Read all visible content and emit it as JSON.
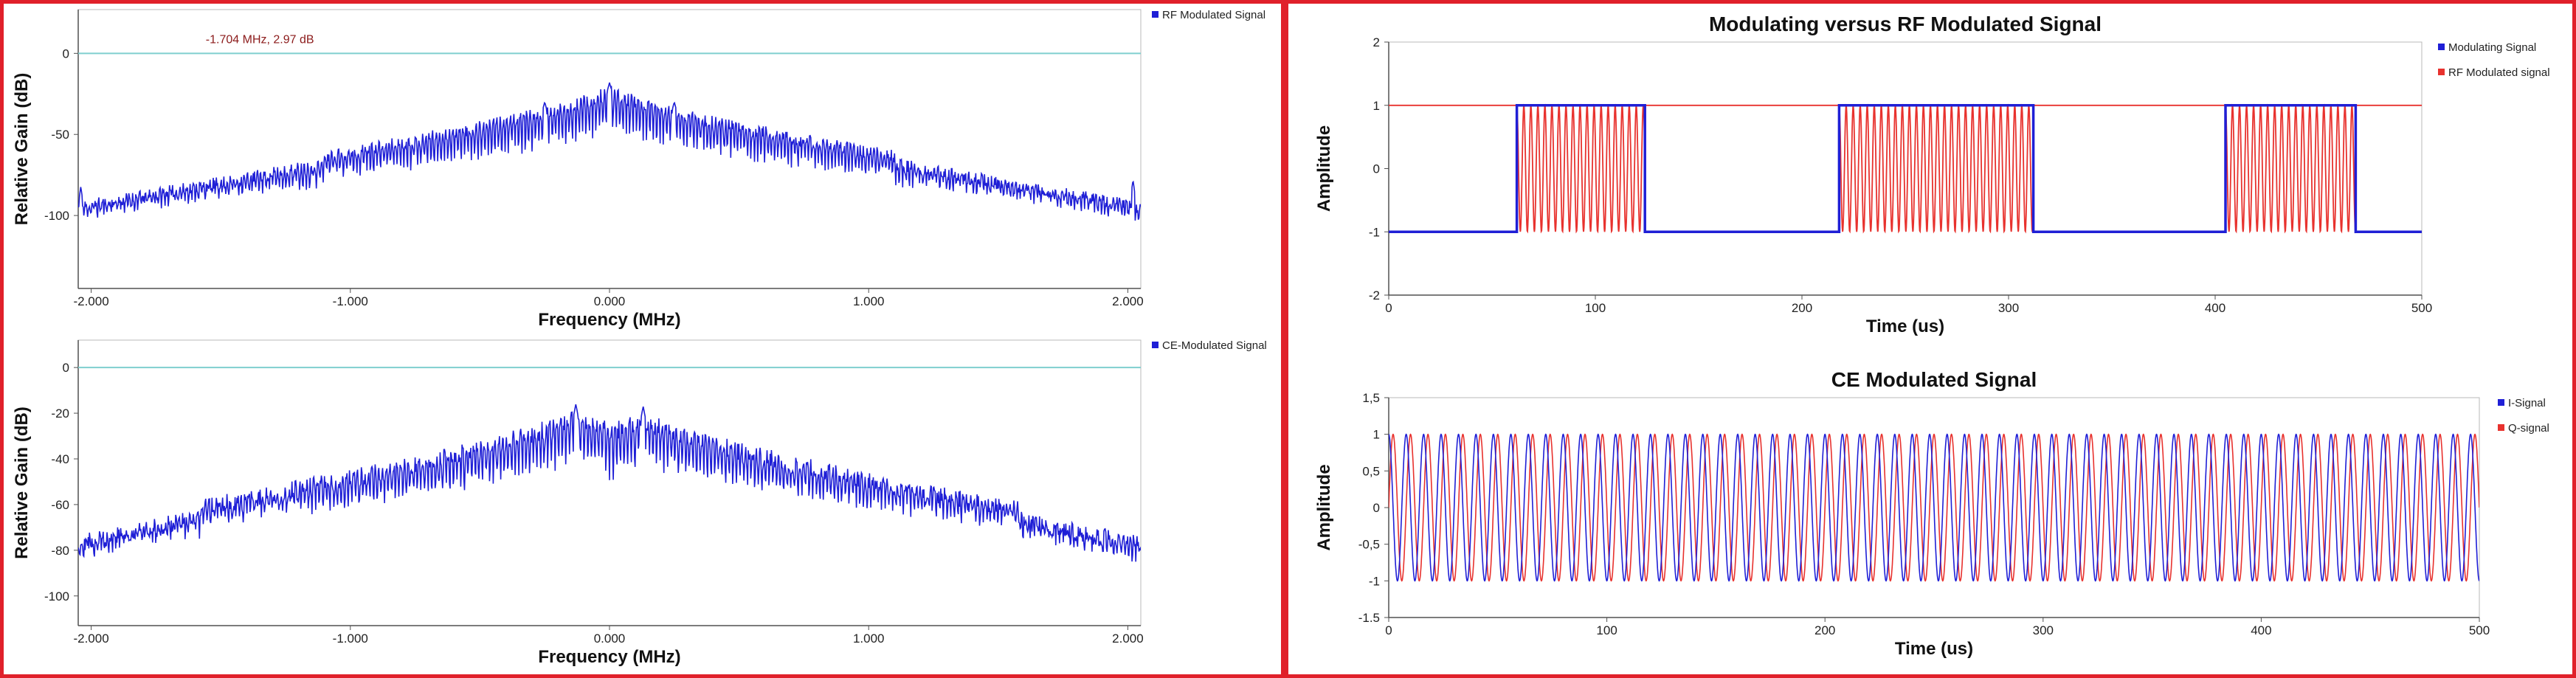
{
  "colors": {
    "frame": "#e0202a",
    "blue": "#1f1fd6",
    "red": "#e8322e",
    "reference_line": "#7fcfcf",
    "cursor_text": "#8b1a1a"
  },
  "chart_data": [
    {
      "type": "line",
      "name": "rf-spectrum",
      "title": "",
      "xlabel": "Frequency (MHz)",
      "ylabel": "Relative Gain (dB)",
      "xlim": [
        -2.05,
        2.05
      ],
      "ylim": [
        -145,
        27
      ],
      "xticks": [
        -2.0,
        -1.0,
        0.0,
        1.0,
        2.0
      ],
      "xtick_labels": [
        "-2.000",
        "-1.000",
        "0.000",
        "1.000",
        "2.000"
      ],
      "yticks": [
        0,
        -50,
        -100
      ],
      "ytick_labels": [
        "0",
        "-50",
        "-100"
      ],
      "reference_line": 0,
      "annotation": "-1.704 MHz, 2.97 dB",
      "legend": "top-right",
      "series": [
        {
          "name": "RF Modulated Signal",
          "color": "blue",
          "noise_floor": -97,
          "peaks": [
            {
              "x": -0.25,
              "y": -30
            },
            {
              "x": 0.0,
              "y": -18
            },
            {
              "x": 0.25,
              "y": -30
            }
          ],
          "spurs": [
            {
              "x": -2.04,
              "y": -82
            },
            {
              "x": -1.76,
              "y": -85
            },
            {
              "x": -1.62,
              "y": -92
            },
            {
              "x": -1.5,
              "y": -80
            },
            {
              "x": -1.42,
              "y": -88
            },
            {
              "x": -1.25,
              "y": -88
            },
            {
              "x": -1.0,
              "y": -90
            },
            {
              "x": 0.9,
              "y": -88
            },
            {
              "x": 1.15,
              "y": -86
            },
            {
              "x": 1.4,
              "y": -82
            },
            {
              "x": 1.62,
              "y": -92
            },
            {
              "x": 2.02,
              "y": -78
            }
          ]
        }
      ]
    },
    {
      "type": "line",
      "name": "ce-spectrum",
      "title": "",
      "xlabel": "Frequency (MHz)",
      "ylabel": "Relative Gain (dB)",
      "xlim": [
        -2.05,
        2.05
      ],
      "ylim": [
        -113,
        12
      ],
      "xticks": [
        -2.0,
        -1.0,
        0.0,
        1.0,
        2.0
      ],
      "xtick_labels": [
        "-2.000",
        "-1.000",
        "0.000",
        "1.000",
        "2.000"
      ],
      "yticks": [
        0,
        -20,
        -40,
        -60,
        -80,
        -100
      ],
      "ytick_labels": [
        "0",
        "-20",
        "-40",
        "-60",
        "-80",
        "-100"
      ],
      "reference_line": 0,
      "legend": "top-right",
      "series": [
        {
          "name": "CE-Modulated Signal",
          "color": "blue",
          "noise_floor": -91,
          "peaks": [
            {
              "x": -0.13,
              "y": -16
            },
            {
              "x": 0.13,
              "y": -17
            }
          ],
          "spurs": [
            {
              "x": -1.65,
              "y": -70
            },
            {
              "x": -1.3,
              "y": -74
            },
            {
              "x": -1.04,
              "y": -76
            },
            {
              "x": 1.02,
              "y": -76
            },
            {
              "x": 1.3,
              "y": -74
            },
            {
              "x": 1.88,
              "y": -74
            },
            {
              "x": 2.02,
              "y": -82
            }
          ]
        }
      ]
    },
    {
      "type": "line",
      "name": "modulating-vs-rf",
      "title": "Modulating versus RF Modulated Signal",
      "xlabel": "Time (us)",
      "ylabel": "Amplitude",
      "xlim": [
        0,
        500
      ],
      "ylim": [
        -2,
        2
      ],
      "xticks": [
        0,
        100,
        200,
        300,
        400,
        500
      ],
      "xtick_labels": [
        "0",
        "100",
        "200",
        "300",
        "400",
        "500"
      ],
      "yticks": [
        2,
        1,
        0,
        -1,
        -2
      ],
      "ytick_labels": [
        "2",
        "1",
        "0",
        "-1",
        "-2"
      ],
      "legend": "top-right",
      "pulses": [
        [
          62,
          124
        ],
        [
          218,
          312
        ],
        [
          405,
          468
        ]
      ],
      "series": [
        {
          "name": "Modulating Signal",
          "color": "blue",
          "high": 1,
          "low": -1
        },
        {
          "name": "RF Modulated signal",
          "color": "red",
          "carrier_period_us": 3.4,
          "idle_level": 1
        }
      ]
    },
    {
      "type": "line",
      "name": "ce-modulated-signal",
      "title": "CE Modulated Signal",
      "xlabel": "Time (us)",
      "ylabel": "Amplitude",
      "xlim": [
        0,
        500
      ],
      "ylim": [
        -1.5,
        1.5
      ],
      "xticks": [
        0,
        100,
        200,
        300,
        400,
        500
      ],
      "xtick_labels": [
        "0",
        "100",
        "200",
        "300",
        "400",
        "500"
      ],
      "yticks": [
        1.5,
        1,
        0.5,
        0,
        -0.5,
        -1,
        -1.5
      ],
      "ytick_labels": [
        "1,5",
        "1",
        "0,5",
        "0",
        "-0,5",
        "-1",
        "-1.5"
      ],
      "legend": "top-right",
      "series": [
        {
          "name": "I-Signal",
          "color": "blue",
          "period_us": 8.0,
          "amplitude": 1,
          "phase_deg": 90
        },
        {
          "name": "Q-signal",
          "color": "red",
          "period_us": 8.0,
          "amplitude": 1,
          "phase_deg": 0
        }
      ]
    }
  ]
}
